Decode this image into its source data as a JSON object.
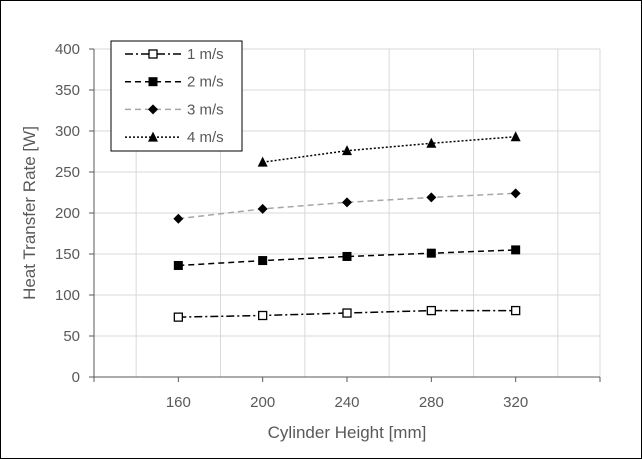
{
  "chart_data": {
    "type": "line",
    "title": "",
    "xlabel": "Cylinder Height [mm]",
    "ylabel": "Heat Transfer Rate [W]",
    "x_ticks": [
      160,
      200,
      240,
      280,
      320
    ],
    "xlim": [
      120,
      360
    ],
    "ylim": [
      0,
      400
    ],
    "y_ticks": [
      0,
      50,
      100,
      150,
      200,
      250,
      300,
      350,
      400
    ],
    "grid": "vertical and horizontal major gridlines",
    "legend_position": "top-left, inside plot",
    "series": [
      {
        "name": "1 m/s",
        "line": "dash-dot",
        "line_color": "#000000",
        "marker": "hollow-square",
        "x": [
          160,
          200,
          240,
          280,
          320
        ],
        "values": [
          73,
          75,
          78,
          81,
          81
        ]
      },
      {
        "name": "2 m/s",
        "line": "dashed",
        "line_color": "#000000",
        "marker": "filled-square",
        "x": [
          160,
          200,
          240,
          280,
          320
        ],
        "values": [
          136,
          142,
          147,
          151,
          155
        ]
      },
      {
        "name": "3 m/s",
        "line": "dashed",
        "line_color": "#a6a6a6",
        "marker": "filled-diamond",
        "x": [
          160,
          200,
          240,
          280,
          320
        ],
        "values": [
          193,
          205,
          213,
          219,
          224
        ]
      },
      {
        "name": "4 m/s",
        "line": "dotted",
        "line_color": "#000000",
        "marker": "filled-triangle",
        "x": [
          200,
          240,
          280,
          320
        ],
        "values": [
          262,
          276,
          285,
          293
        ]
      }
    ]
  }
}
